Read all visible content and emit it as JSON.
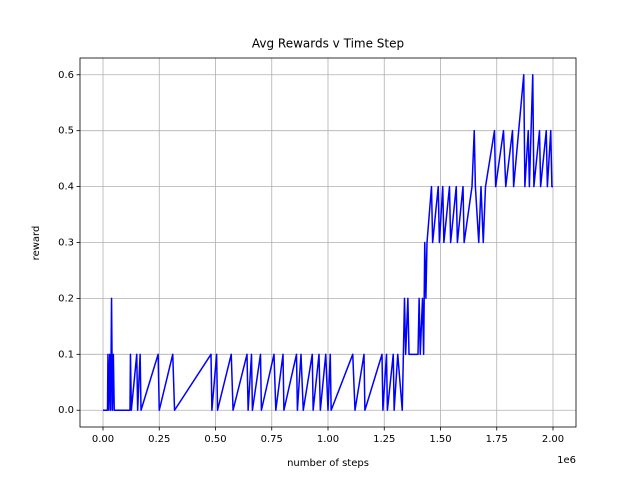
{
  "chart_data": {
    "type": "line",
    "title": "Avg Rewards v Time Step",
    "x_label": "number of steps",
    "y_label": "reward",
    "x_offset_text": "1e6",
    "grid": true,
    "xlim": [
      -102200,
      2102200
    ],
    "xticks": [
      {
        "value": 0,
        "label": "0.00"
      },
      {
        "value": 250000,
        "label": "0.25"
      },
      {
        "value": 500000,
        "label": "0.50"
      },
      {
        "value": 750000,
        "label": "0.75"
      },
      {
        "value": 1000000,
        "label": "1.00"
      },
      {
        "value": 1250000,
        "label": "1.25"
      },
      {
        "value": 1500000,
        "label": "1.50"
      },
      {
        "value": 1750000,
        "label": "1.75"
      },
      {
        "value": 2000000,
        "label": "2.00"
      }
    ],
    "ylim": [
      -0.03,
      0.63
    ],
    "yticks": [
      {
        "value": 0,
        "label": "0.0"
      },
      0.1,
      0.2,
      0.3,
      0.4,
      0.5,
      0.6
    ],
    "series": [
      {
        "name": "reward",
        "color": "#0000ff",
        "x": [
          0,
          20000,
          22000,
          26000,
          30000,
          34000,
          38000,
          42000,
          46000,
          50000,
          120000,
          122000,
          126000,
          150000,
          154000,
          165000,
          169000,
          245000,
          250000,
          310000,
          318000,
          480000,
          484000,
          505000,
          509000,
          570000,
          578000,
          640000,
          645000,
          660000,
          664000,
          700000,
          704000,
          760000,
          768000,
          800000,
          804000,
          860000,
          864000,
          880000,
          890000,
          930000,
          934000,
          960000,
          966000,
          990000,
          1000000,
          1010000,
          1014000,
          1110000,
          1120000,
          1160000,
          1164000,
          1240000,
          1244000,
          1260000,
          1264000,
          1290000,
          1294000,
          1310000,
          1330000,
          1335000,
          1340000,
          1345000,
          1355000,
          1360000,
          1400000,
          1405000,
          1410000,
          1420000,
          1425000,
          1430000,
          1435000,
          1440000,
          1460000,
          1465000,
          1490000,
          1495000,
          1510000,
          1515000,
          1540000,
          1545000,
          1570000,
          1575000,
          1600000,
          1605000,
          1640000,
          1650000,
          1655000,
          1670000,
          1680000,
          1690000,
          1700000,
          1740000,
          1745000,
          1780000,
          1790000,
          1820000,
          1825000,
          1870000,
          1875000,
          1890000,
          1895000,
          1910000,
          1915000,
          1940000,
          1945000,
          1970000,
          1975000,
          1990000,
          1995000,
          2000000
        ],
        "values": [
          0,
          0,
          0.1,
          0,
          0.1,
          0,
          0.2,
          0,
          0.1,
          0,
          0,
          0.1,
          0,
          0.1,
          0,
          0.1,
          0,
          0.1,
          0,
          0.1,
          0,
          0.1,
          0,
          0.1,
          0,
          0.1,
          0,
          0.1,
          0,
          0.1,
          0,
          0.1,
          0,
          0.1,
          0,
          0.1,
          0,
          0.1,
          0,
          0.1,
          0,
          0.1,
          0,
          0.1,
          0,
          0.1,
          0,
          0.1,
          0,
          0.1,
          0,
          0.1,
          0,
          0.1,
          0,
          0.1,
          0,
          0.1,
          0,
          0.1,
          0,
          0.1,
          0.2,
          0.1,
          0.2,
          0.1,
          0.1,
          0.2,
          0.1,
          0.2,
          0.1,
          0.3,
          0.2,
          0.3,
          0.4,
          0.3,
          0.4,
          0.3,
          0.4,
          0.3,
          0.4,
          0.3,
          0.4,
          0.3,
          0.4,
          0.3,
          0.4,
          0.5,
          0.4,
          0.3,
          0.4,
          0.3,
          0.4,
          0.5,
          0.4,
          0.5,
          0.4,
          0.5,
          0.4,
          0.6,
          0.4,
          0.5,
          0.4,
          0.6,
          0.4,
          0.5,
          0.4,
          0.5,
          0.4,
          0.5,
          0.4,
          0.4
        ]
      }
    ]
  }
}
